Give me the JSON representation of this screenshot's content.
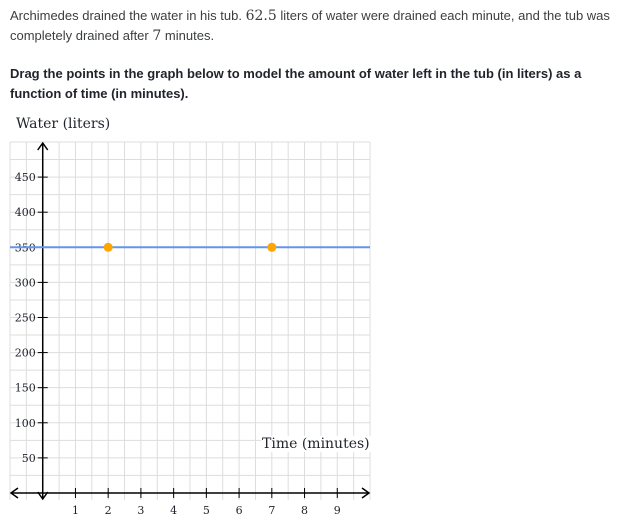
{
  "problem": {
    "part1": "Archimedes drained the water in his tub.",
    "rate": "62.5",
    "part2": "liters of water were drained each minute, and the tub was completely drained after",
    "minutes": "7",
    "part3": "minutes."
  },
  "instructions": "Drag the points in the graph below to model the amount of water left in the tub (in liters) as a function of time (in minutes).",
  "graph": {
    "y_axis_label": "Water (liters)",
    "x_axis_label": "Time (minutes)",
    "colors": {
      "line": "#6495ed",
      "point": "#ffa500",
      "grid": "#dddddd",
      "axis": "#000000"
    }
  },
  "chart_data": {
    "type": "line",
    "xlabel": "Time (minutes)",
    "ylabel": "Water (liters)",
    "xlim": [
      -1,
      10
    ],
    "ylim": [
      -10,
      500
    ],
    "x_ticks": [
      1,
      2,
      3,
      4,
      5,
      6,
      7,
      8,
      9
    ],
    "y_ticks": [
      50,
      100,
      150,
      200,
      250,
      300,
      350,
      400,
      450
    ],
    "grid": true,
    "points": [
      {
        "x": 2,
        "y": 350
      },
      {
        "x": 7,
        "y": 350
      }
    ],
    "line": {
      "slope": 0,
      "intercept": 350,
      "extends": "both"
    }
  }
}
